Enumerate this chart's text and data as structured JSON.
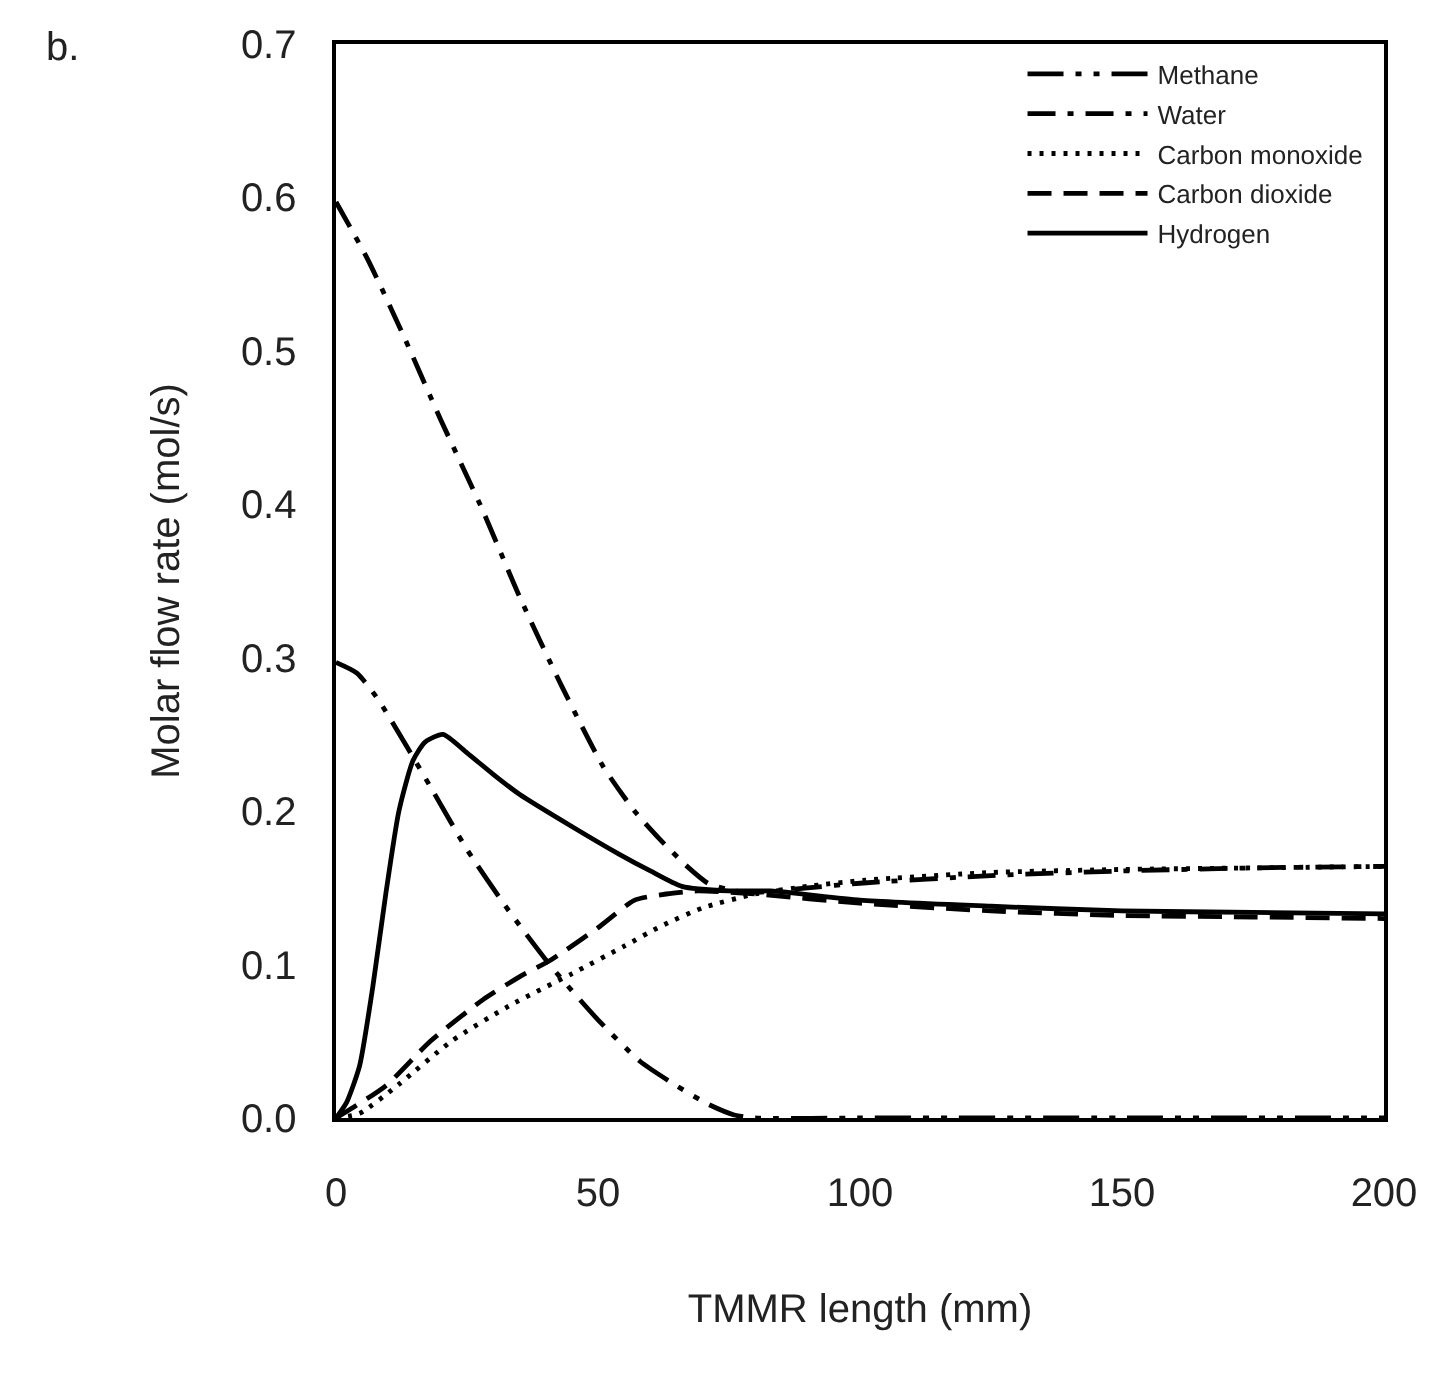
{
  "chart_data": {
    "type": "line",
    "title": "b.",
    "xlabel": "TMMR length (mm)",
    "ylabel": "Molar flow rate (mol/s)",
    "xlim": [
      0,
      200
    ],
    "xticks": [
      0,
      50,
      100,
      150,
      200
    ],
    "ylim": [
      0,
      0.7
    ],
    "yticks": [
      {
        "value": 0,
        "label": "0.0"
      },
      0.1,
      0.2,
      0.3,
      0.4,
      0.5,
      0.6,
      0.7
    ],
    "legend": "top right",
    "marker": "none",
    "series": [
      {
        "name": "Methane",
        "color": "#000000",
        "line_style": "dashdotdot",
        "x": [
          0,
          4,
          8,
          13,
          18,
          25,
          33,
          41,
          50,
          58,
          65,
          71,
          76,
          80,
          100,
          150,
          200
        ],
        "values": [
          0.297,
          0.29,
          0.273,
          0.245,
          0.216,
          0.175,
          0.135,
          0.099,
          0.064,
          0.037,
          0.021,
          0.009,
          0.002,
          0,
          0,
          0,
          0
        ]
      },
      {
        "name": "Water",
        "color": "#000000",
        "line_style": "dashdot",
        "x": [
          0,
          6,
          13,
          20,
          28,
          35,
          43,
          51,
          57,
          62,
          67,
          71,
          76,
          80,
          90,
          100,
          125,
          150,
          175,
          200
        ],
        "values": [
          0.597,
          0.56,
          0.509,
          0.455,
          0.396,
          0.34,
          0.282,
          0.229,
          0.2,
          0.181,
          0.164,
          0.153,
          0.148,
          0.147,
          0.15,
          0.153,
          0.158,
          0.161,
          0.163,
          0.164
        ]
      },
      {
        "name": "Carbon monoxide",
        "color": "#000000",
        "line_style": "dotted",
        "x": [
          0,
          4.5,
          12,
          22,
          33,
          45,
          55,
          62,
          70,
          80,
          90,
          101,
          125,
          150,
          175,
          200
        ],
        "values": [
          0,
          0.003,
          0.022,
          0.05,
          0.073,
          0.094,
          0.112,
          0.125,
          0.137,
          0.146,
          0.151,
          0.155,
          0.16,
          0.162,
          0.163,
          0.164
        ]
      },
      {
        "name": "Carbon dioxide",
        "color": "#000000",
        "line_style": "dashed",
        "x": [
          0,
          9.5,
          18,
          28,
          35,
          41,
          50,
          57,
          63,
          69,
          80,
          100,
          125,
          150,
          175,
          200
        ],
        "values": [
          0,
          0.021,
          0.05,
          0.077,
          0.092,
          0.103,
          0.124,
          0.142,
          0.146,
          0.148,
          0.146,
          0.14,
          0.135,
          0.132,
          0.131,
          0.13
        ]
      },
      {
        "name": "Hydrogen",
        "color": "#000000",
        "line_style": "solid",
        "x": [
          0,
          2,
          4.5,
          7,
          9.5,
          12,
          14.7,
          17,
          20.4,
          25,
          30,
          35,
          45,
          54,
          60,
          66,
          75,
          83,
          100,
          125,
          150,
          175,
          200
        ],
        "values": [
          0,
          0.01,
          0.034,
          0.085,
          0.146,
          0.2,
          0.233,
          0.245,
          0.25,
          0.238,
          0.224,
          0.211,
          0.19,
          0.172,
          0.161,
          0.151,
          0.148,
          0.148,
          0.142,
          0.138,
          0.135,
          0.134,
          0.133
        ]
      }
    ]
  }
}
